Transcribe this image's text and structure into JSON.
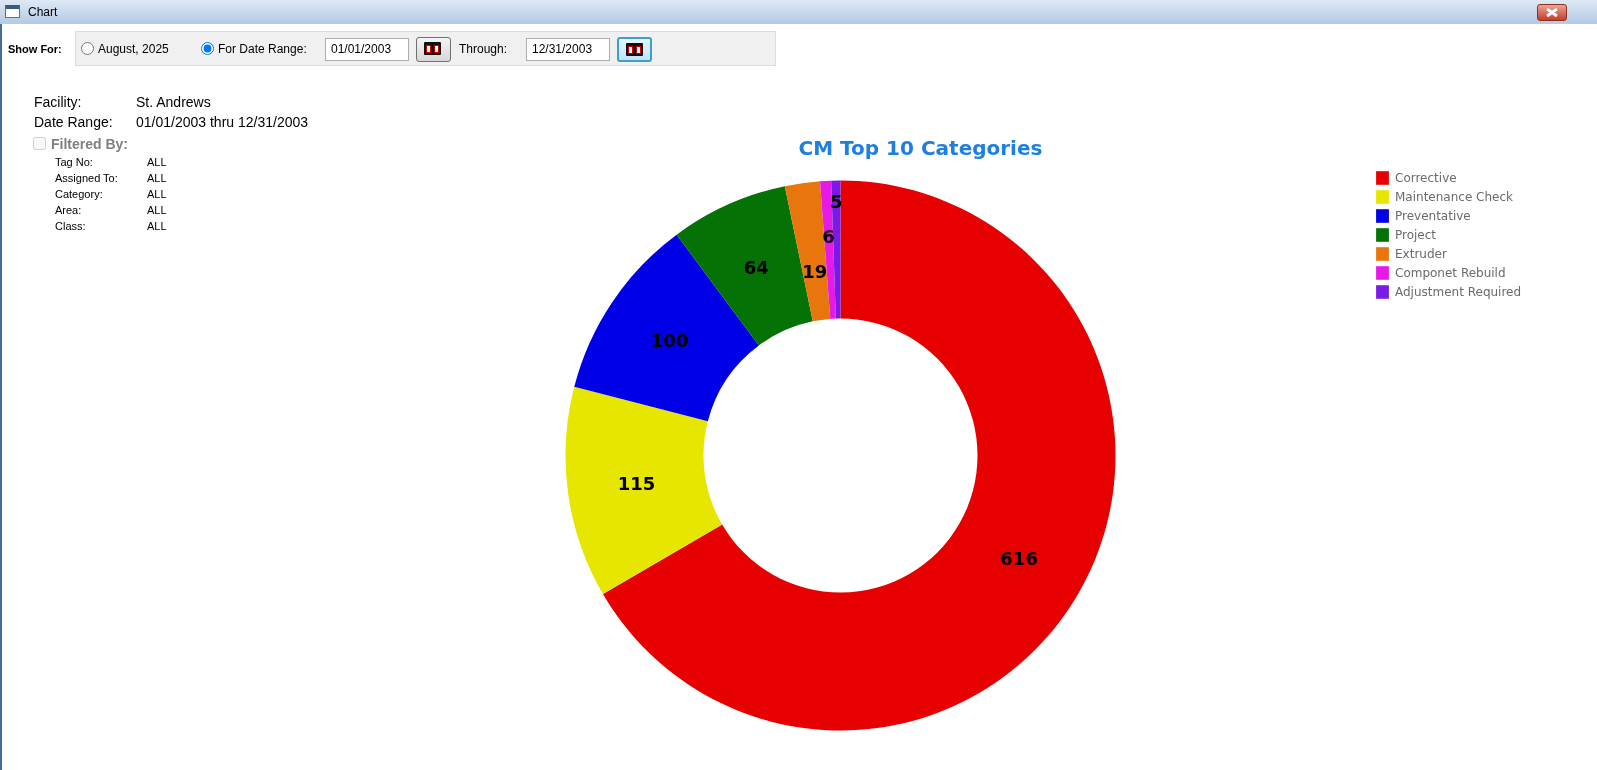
{
  "chart_data": {
    "type": "donut",
    "title": "CM Top 10 Categories",
    "categories": [
      "Corrective",
      "Maintenance Check",
      "Preventative",
      "Project",
      "Extruder",
      "Componet Rebuild",
      "Adjustment Required"
    ],
    "values": [
      616,
      115,
      100,
      64,
      19,
      6,
      5
    ],
    "colors": [
      "#e60000",
      "#e6e600",
      "#0000e6",
      "#047204",
      "#e8760c",
      "#e61ae6",
      "#7a1ae6"
    ],
    "data_labels": true,
    "legend": "top right",
    "annotations": [
      "Chart",
      "Show For:",
      "August, 2025",
      "For Date Range:",
      "01/01/2003",
      "Through:",
      "12/31/2003",
      "Facility:",
      "St. Andrews",
      "Date Range:",
      "01/01/2003 thru 12/31/2003",
      "Filtered By:",
      "Tag No:",
      "ALL",
      "Assigned To:",
      "ALL",
      "Category:",
      "ALL",
      "Area:",
      "ALL",
      "Class:",
      "ALL"
    ]
  }
}
